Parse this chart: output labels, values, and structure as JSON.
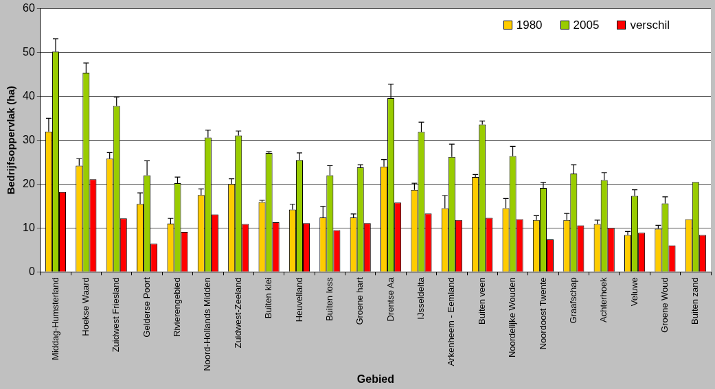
{
  "chart_data": {
    "type": "bar",
    "xlabel": "Gebied",
    "ylabel": "Bedrijfsoppervlak (ha)",
    "categories": [
      "Middag-Humsterland",
      "Hoekse Waard",
      "Zuidwest Friesland",
      "Gelderse Poort",
      "Rivierengebied",
      "Noord-Hollands Midden",
      "Zuidwest-Zeeland",
      "Buiten klei",
      "Heuvelland",
      "Buiten loss",
      "Groene hart",
      "Drentse Aa",
      "IJsseldelta",
      "Arkenheem - Eemland",
      "Buiten veen",
      "Noordelijke Wouden",
      "Noordoost Twente",
      "Graafschap",
      "Achterhoek",
      "Veluwe",
      "Groene Woud",
      "Buiten zand"
    ],
    "series": [
      {
        "name": "1980",
        "color": "#ffcc00",
        "values": [
          32,
          24.2,
          25.8,
          15.5,
          11,
          17.5,
          20,
          15.9,
          14.2,
          12.4,
          12.4,
          24,
          18.7,
          14.5,
          21.6,
          14.5,
          11.8,
          11.8,
          10.9,
          8.4,
          9.8,
          12
        ],
        "errors": [
          [
            32,
            35
          ],
          [
            24.2,
            25.8
          ],
          [
            25.8,
            27.2
          ],
          [
            15.5,
            18
          ],
          [
            11,
            12.2
          ],
          [
            17.5,
            18.9
          ],
          [
            20,
            21.2
          ],
          [
            15.9,
            16.3
          ],
          [
            14.2,
            15.4
          ],
          [
            12.4,
            14.9
          ],
          [
            12.4,
            13.2
          ],
          [
            24,
            25.6
          ],
          [
            18.7,
            20.2
          ],
          [
            14.5,
            17.4
          ],
          [
            21.6,
            22.2
          ],
          [
            14.5,
            16.7
          ],
          [
            11.8,
            12.8
          ],
          [
            11.8,
            13.3
          ],
          [
            10.9,
            11.8
          ],
          [
            8.4,
            9.2
          ],
          [
            9.8,
            10.6
          ],
          null
        ]
      },
      {
        "name": "2005",
        "color": "#99cc00",
        "values": [
          50.2,
          45.4,
          37.8,
          22,
          20.2,
          30.6,
          31.1,
          27.1,
          25.5,
          22,
          23.8,
          39.6,
          31.9,
          26.2,
          33.6,
          26.4,
          19.1,
          22.4,
          20.9,
          17.3,
          15.6,
          20.5
        ],
        "errors": [
          [
            50.2,
            53.1
          ],
          [
            45.4,
            47.6
          ],
          [
            37.8,
            39.8
          ],
          [
            22,
            25.3
          ],
          [
            20.2,
            21.6
          ],
          [
            30.6,
            32.3
          ],
          [
            31.1,
            32.1
          ],
          [
            27.1,
            27.4
          ],
          [
            25.5,
            27.1
          ],
          [
            22,
            24.2
          ],
          [
            23.8,
            24.4
          ],
          [
            39.6,
            42.8
          ],
          [
            31.9,
            34.1
          ],
          [
            26.2,
            29.1
          ],
          [
            33.6,
            34.4
          ],
          [
            26.4,
            28.6
          ],
          [
            19.1,
            20.4
          ],
          [
            22.4,
            24.4
          ],
          [
            20.9,
            22.6
          ],
          [
            17.3,
            18.7
          ],
          [
            15.6,
            17.1
          ],
          null
        ]
      },
      {
        "name": "verschil",
        "color": "#ff0000",
        "values": [
          18.2,
          21.1,
          12.2,
          6.4,
          9.1,
          13.1,
          10.9,
          11.3,
          11.1,
          9.5,
          11.1,
          15.8,
          13.3,
          11.8,
          12.3,
          12,
          7.4,
          10.6,
          10,
          8.9,
          6,
          8.4
        ]
      }
    ],
    "ylim": [
      0,
      60
    ],
    "yticks": [
      0,
      10,
      20,
      30,
      40,
      50,
      60
    ],
    "grid": "y",
    "legend": "top right"
  }
}
